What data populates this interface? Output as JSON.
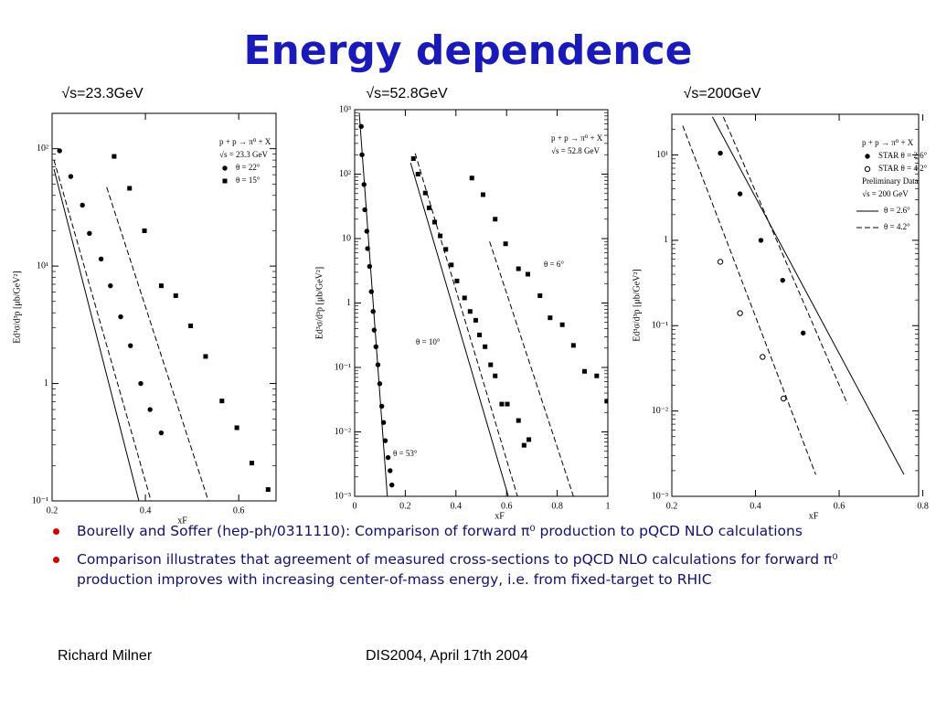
{
  "title": "Energy dependence",
  "chart_data": [
    {
      "type": "scatter",
      "title": "√s=23.3GeV",
      "ylabel": "Ed³σ/d³p [μb/GeV²]",
      "xlabel": "xF",
      "log_y": true,
      "xlim": [
        0.2,
        0.68
      ],
      "ylim": [
        0.1,
        200
      ],
      "xticks": [
        0.2,
        0.4,
        0.6
      ],
      "yticks": [
        {
          "value": 100,
          "label": "10²"
        },
        {
          "value": 10,
          "label": "10¹"
        },
        1,
        {
          "value": 0.1,
          "label": "10⁻¹"
        }
      ],
      "legend_header": [
        "p + p → π⁰ + X",
        "√s = 23.3 GeV"
      ],
      "series": [
        {
          "name": "θ = 22°",
          "marker": "filled-circle",
          "color": "#000000",
          "x": [
            0.216,
            0.24,
            0.265,
            0.28,
            0.305,
            0.325,
            0.347,
            0.368,
            0.39,
            0.41,
            0.434
          ],
          "values": [
            96,
            58,
            33,
            19,
            11.5,
            6.8,
            3.7,
            2.1,
            1.0,
            0.6,
            0.38
          ]
        },
        {
          "name": "θ = 15°",
          "marker": "filled-square",
          "color": "#000000",
          "x": [
            0.333,
            0.366,
            0.398,
            0.434,
            0.465,
            0.497,
            0.529,
            0.564,
            0.596,
            0.628,
            0.663
          ],
          "values": [
            86,
            46,
            20,
            6.8,
            5.6,
            3.1,
            1.7,
            0.71,
            0.42,
            0.21,
            0.125
          ]
        },
        {
          "kind": "line",
          "dash": false,
          "color": "#000000",
          "x": [
            0.204,
            0.386
          ],
          "values": [
            67,
            0.1
          ]
        },
        {
          "kind": "line",
          "dash": true,
          "color": "#000000",
          "x": [
            0.204,
            0.412
          ],
          "values": [
            80,
            0.1
          ]
        },
        {
          "kind": "line",
          "dash": true,
          "color": "#000000",
          "x": [
            0.317,
            0.535
          ],
          "values": [
            47,
            0.1
          ]
        }
      ]
    },
    {
      "type": "scatter",
      "title": "√s=52.8GeV",
      "ylabel": "Ed³σ/d³p [μb/GeV²]",
      "xlabel": "xF",
      "log_y": true,
      "xlim": [
        0,
        1
      ],
      "ylim": [
        0.001,
        1000
      ],
      "xticks": [
        0,
        0.2,
        0.4,
        0.6,
        0.8,
        1
      ],
      "yticks": [
        {
          "value": 1000,
          "label": "10³"
        },
        {
          "value": 100,
          "label": "10²"
        },
        10,
        1,
        {
          "value": 0.1,
          "label": "10⁻¹"
        },
        {
          "value": 0.01,
          "label": "10⁻²"
        },
        {
          "value": 0.001,
          "label": "10⁻³"
        }
      ],
      "legend_header": [
        "p + p → π⁰ + X",
        "√s = 52.8 GeV"
      ],
      "inline_labels": true,
      "series": [
        {
          "name": "θ = 53°",
          "marker": "filled-circle",
          "color": "#000000",
          "x": [
            0.026,
            0.029,
            0.037,
            0.04,
            0.048,
            0.051,
            0.059,
            0.066,
            0.073,
            0.077,
            0.084,
            0.092,
            0.099,
            0.107,
            0.114,
            0.121,
            0.132,
            0.14,
            0.147
          ],
          "values": [
            550,
            200,
            69,
            28,
            13,
            7,
            3.7,
            1.5,
            0.74,
            0.38,
            0.21,
            0.11,
            0.056,
            0.025,
            0.014,
            0.0073,
            0.004,
            0.0025,
            0.0015
          ]
        },
        {
          "name": "θ = 10°",
          "marker": "filled-square",
          "color": "#000000",
          "x": [
            0.232,
            0.25,
            0.279,
            0.294,
            0.316,
            0.338,
            0.36,
            0.382,
            0.404,
            0.434,
            0.456,
            0.478,
            0.493,
            0.515,
            0.537,
            0.555,
            0.581,
            0.603,
            0.647,
            0.669,
            0.688
          ],
          "values": [
            174,
            100,
            51,
            30,
            18,
            11,
            6.8,
            3.9,
            2.2,
            1.2,
            0.74,
            0.54,
            0.32,
            0.21,
            0.11,
            0.074,
            0.027,
            0.027,
            0.015,
            0.0062,
            0.0076
          ]
        },
        {
          "name": "θ = 6°",
          "marker": "filled-square",
          "color": "#000000",
          "x": [
            0.463,
            0.507,
            0.555,
            0.596,
            0.647,
            0.684,
            0.732,
            0.772,
            0.82,
            0.864,
            0.908,
            0.956,
            0.996
          ],
          "values": [
            87,
            48,
            20,
            8.3,
            3.4,
            2.8,
            1.3,
            0.59,
            0.46,
            0.22,
            0.087,
            0.074,
            0.03
          ]
        },
        {
          "kind": "line",
          "dash": false,
          "color": "#000000",
          "x": [
            0.018,
            0.129
          ],
          "values": [
            900,
            0.001
          ]
        },
        {
          "kind": "line",
          "dash": false,
          "color": "#000000",
          "x": [
            0.221,
            0.607
          ],
          "values": [
            150,
            0.001
          ]
        },
        {
          "kind": "line",
          "dash": true,
          "color": "#000000",
          "x": [
            0.239,
            0.643
          ],
          "values": [
            210,
            0.001
          ]
        },
        {
          "kind": "line",
          "dash": true,
          "color": "#000000",
          "x": [
            0.533,
            0.864
          ],
          "values": [
            9,
            0.001
          ]
        }
      ]
    },
    {
      "type": "scatter",
      "title": "√s=200GeV",
      "ylabel": "Ed³σ/d³p [μb/GeV²]",
      "xlabel": "xF",
      "log_y": true,
      "xlim": [
        0.2,
        0.79
      ],
      "ylim": [
        0.001,
        30
      ],
      "xticks": [
        0.2,
        0.4,
        0.6,
        0.8
      ],
      "yticks": [
        {
          "value": 10,
          "label": "10¹"
        },
        1,
        {
          "value": 0.1,
          "label": "10⁻¹"
        },
        {
          "value": 0.01,
          "label": "10⁻²"
        },
        {
          "value": 0.001,
          "label": "10⁻³"
        }
      ],
      "legend_header": [
        "p + p → π⁰ + X"
      ],
      "legend_footer": [
        "Preliminary Data",
        "√s = 200 GeV"
      ],
      "series": [
        {
          "name": "STAR θ = 2.6°",
          "marker": "filled-circle",
          "color": "#000000",
          "x": [
            0.316,
            0.363,
            0.413,
            0.465,
            0.514
          ],
          "values": [
            10.5,
            3.5,
            1,
            0.34,
            0.082
          ]
        },
        {
          "name": "STAR θ = 4.2°",
          "marker": "open-circle",
          "color": "#000000",
          "x": [
            0.316,
            0.363,
            0.417,
            0.467
          ],
          "values": [
            0.56,
            0.14,
            0.043,
            0.014
          ]
        },
        {
          "name": "θ = 2.6°",
          "kind": "line",
          "dash": false,
          "color": "#000000",
          "x": [
            0.297,
            0.755
          ],
          "values": [
            28,
            0.0018
          ]
        },
        {
          "name": "θ = 4.2°",
          "kind": "line",
          "dash": true,
          "color": "#000000",
          "x": [
            0.226,
            0.544
          ],
          "values": [
            22,
            0.0018
          ]
        },
        {
          "kind": "line",
          "dash": true,
          "color": "#000000",
          "x": [
            0.323,
            0.62
          ],
          "values": [
            28,
            0.012
          ]
        }
      ]
    }
  ],
  "bullets": [
    "Bourelly and Soffer (hep-ph/0311110): Comparison of forward π⁰ production to pQCD NLO calculations",
    "Comparison illustrates that agreement of measured cross-sections to pQCD NLO calculations for forward π⁰ production improves with increasing center-of-mass energy, i.e. from fixed-target to RHIC"
  ],
  "footer": {
    "left": "Richard Milner",
    "center": "DIS2004, April 17th 2004"
  }
}
